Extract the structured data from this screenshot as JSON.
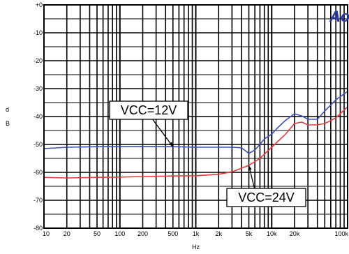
{
  "chart_data": {
    "type": "line",
    "title": "",
    "xlabel": "Hz",
    "ylabel_letters": [
      "d",
      "B"
    ],
    "x_scale": "log",
    "xlim": [
      10,
      100000
    ],
    "ylim": [
      -80,
      0
    ],
    "grid": true,
    "x_ticks": [
      {
        "v": 10,
        "label": "10"
      },
      {
        "v": 20,
        "label": "20"
      },
      {
        "v": 50,
        "label": "50"
      },
      {
        "v": 100,
        "label": "100"
      },
      {
        "v": 200,
        "label": "200"
      },
      {
        "v": 500,
        "label": "500"
      },
      {
        "v": 1000,
        "label": "1k"
      },
      {
        "v": 2000,
        "label": "2k"
      },
      {
        "v": 5000,
        "label": "5k"
      },
      {
        "v": 10000,
        "label": "10k"
      },
      {
        "v": 20000,
        "label": "20k"
      },
      {
        "v": 100000,
        "label": "100k"
      }
    ],
    "y_ticks": [
      {
        "v": 0,
        "label": "+0"
      },
      {
        "v": -10,
        "label": "-10"
      },
      {
        "v": -20,
        "label": "-20"
      },
      {
        "v": -30,
        "label": "-30"
      },
      {
        "v": -40,
        "label": "-40"
      },
      {
        "v": -50,
        "label": "-50"
      },
      {
        "v": -60,
        "label": "-60"
      },
      {
        "v": -70,
        "label": "-70"
      },
      {
        "v": -80,
        "label": "-80"
      }
    ],
    "series": [
      {
        "name": "VCC=12V",
        "color": "#3b4fc0",
        "x": [
          10,
          20,
          50,
          100,
          200,
          500,
          1000,
          2000,
          3000,
          4000,
          5000,
          6000,
          7000,
          8000,
          10000,
          12000,
          15000,
          20000,
          25000,
          30000,
          40000,
          50000,
          70000,
          100000
        ],
        "y": [
          -51.5,
          -51,
          -50.8,
          -50.8,
          -50.7,
          -50.8,
          -51,
          -51,
          -51,
          -51.2,
          -53.2,
          -52,
          -50,
          -48,
          -46.3,
          -44,
          -41.5,
          -39,
          -39.8,
          -41,
          -41,
          -38,
          -34,
          -31
        ]
      },
      {
        "name": "VCC=24V",
        "color": "#e83a3a",
        "x": [
          10,
          20,
          50,
          100,
          200,
          500,
          1000,
          2000,
          3000,
          5000,
          7000,
          10000,
          15000,
          20000,
          25000,
          30000,
          40000,
          50000,
          70000,
          100000
        ],
        "y": [
          -61.8,
          -62,
          -61.8,
          -61.7,
          -61.5,
          -61.3,
          -61.2,
          -60.7,
          -59.8,
          -57.5,
          -55,
          -51,
          -46.5,
          -42.5,
          -42,
          -43,
          -43,
          -42.5,
          -40.5,
          -36.5
        ]
      }
    ],
    "annotations": [
      {
        "text": "VCC=12V",
        "series": 0,
        "at": {
          "x": 500,
          "y": -50.8
        }
      },
      {
        "text": "VCC=24V",
        "series": 1,
        "at": {
          "x": 5000,
          "y": -57.5
        }
      }
    ],
    "logo_text": "Ao",
    "logo_color": "#2b3aa8"
  }
}
